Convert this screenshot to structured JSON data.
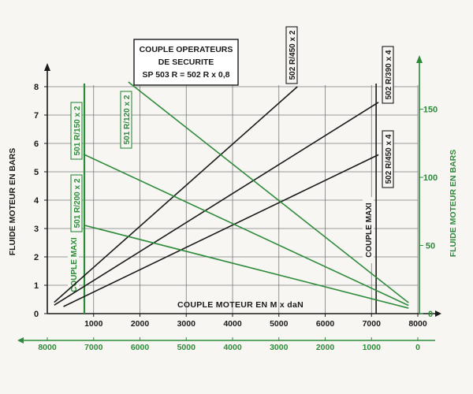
{
  "title_lines": [
    "COUPLE  OPERATEURS",
    "DE  SECURITE",
    "SP 503 R = 502 R x 0,8"
  ],
  "colors": {
    "primary": "#1a1a1a",
    "secondary": "#2e8b3a",
    "grid": "#7a7a7a",
    "background": "#f7f6f3"
  },
  "chart_data": {
    "type": "line",
    "title": "COUPLE  OPERATEURS DE  SECURITE SP 503 R = 502 R x 0,8",
    "xlabel": "COUPLE MOTEUR EN  M x daN",
    "xlim": [
      0,
      8000
    ],
    "x_ticks": [
      "1000",
      "2000",
      "3000",
      "4000",
      "5000",
      "6000",
      "7000",
      "8000"
    ],
    "x2lim": [
      8000,
      0
    ],
    "x2_ticks": [
      "8000",
      "7000",
      "6000",
      "5000",
      "4000",
      "3000",
      "2000",
      "1000",
      "0"
    ],
    "ylabel": "FLUIDE MOTEUR EN BARS",
    "ylim": [
      0,
      8
    ],
    "y_ticks": [
      "0",
      "1",
      "2",
      "3",
      "4",
      "5",
      "6",
      "7",
      "8"
    ],
    "y2label": "FLUIDE MOTEUR EN BARS",
    "y2lim": [
      0,
      170
    ],
    "y2_ticks": [
      "0",
      "50",
      "100",
      "150"
    ],
    "grid": true,
    "series": [
      {
        "name": "502 R/450 x 2",
        "color": "#1a1a1a",
        "axis": "primary",
        "points": [
          [
            150,
            0.4
          ],
          [
            5400,
            8.0
          ]
        ]
      },
      {
        "name": "502 R/390 x 4",
        "color": "#1a1a1a",
        "axis": "primary",
        "points": [
          [
            150,
            0.3
          ],
          [
            7150,
            7.45
          ]
        ]
      },
      {
        "name": "502 R/450 x 4",
        "color": "#1a1a1a",
        "axis": "primary",
        "points": [
          [
            350,
            0.25
          ],
          [
            7150,
            5.6
          ]
        ]
      },
      {
        "name": "501 R/120 x 2",
        "color": "#2e8b3a",
        "axis": "secondary",
        "points": [
          [
            1750,
            170
          ],
          [
            7800,
            8
          ]
        ]
      },
      {
        "name": "501 R/150 x 2",
        "color": "#2e8b3a",
        "axis": "secondary",
        "points": [
          [
            780,
            117
          ],
          [
            7800,
            6
          ]
        ]
      },
      {
        "name": "501 R/200 x 2",
        "color": "#2e8b3a",
        "axis": "secondary",
        "points": [
          [
            780,
            65
          ],
          [
            7800,
            4
          ]
        ]
      }
    ],
    "reference_lines": [
      {
        "label": "COUPLE  MAXI",
        "color": "#2e8b3a",
        "x": 800
      },
      {
        "label": "COUPLE  MAXI",
        "color": "#1a1a1a",
        "x": 7100
      }
    ]
  }
}
